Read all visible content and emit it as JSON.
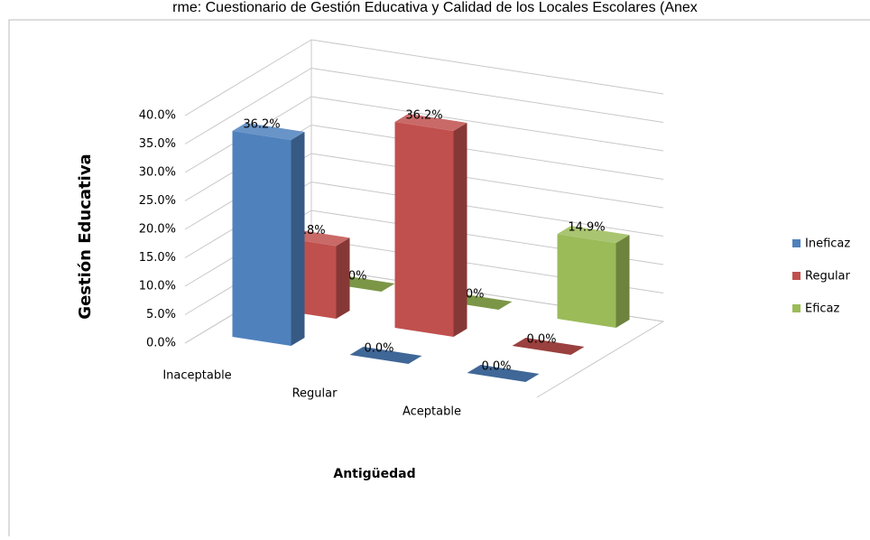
{
  "chart_data": {
    "type": "bar3d",
    "title": "rme: Cuestionario de Gestión Educativa y Calidad de los Locales Escolares (Anex",
    "x_label": "Antigüedad",
    "y_label": "Gestión Educativa",
    "categories": [
      "Inaceptable",
      "Regular",
      "Aceptable"
    ],
    "series": [
      {
        "name": "Ineficaz",
        "color": "#4f81bd",
        "values": [
          36.2,
          0,
          0
        ],
        "value_labels": [
          "36.2%",
          "0.0%",
          "0.0%"
        ]
      },
      {
        "name": "Regular",
        "color": "#c0504d",
        "values": [
          12.8,
          36.2,
          0
        ],
        "value_labels": [
          "12.8%",
          "36.2%",
          "0.0%"
        ]
      },
      {
        "name": "Eficaz",
        "color": "#9bbb59",
        "values": [
          0,
          0,
          14.9
        ],
        "value_labels": [
          "0.0%",
          "0.0%",
          "14.9%"
        ]
      }
    ],
    "ylim": [
      0,
      40
    ],
    "yticks": [
      {
        "value": 0,
        "label": "0.0%"
      },
      {
        "value": 5,
        "label": "5.0%"
      },
      {
        "value": 10,
        "label": "10.0%"
      },
      {
        "value": 15,
        "label": "15.0%"
      },
      {
        "value": 20,
        "label": "20.0%"
      },
      {
        "value": 25,
        "label": "25.0%"
      },
      {
        "value": 30,
        "label": "30.0%"
      },
      {
        "value": 35,
        "label": "35.0%"
      },
      {
        "value": 40,
        "label": "40.0%"
      }
    ],
    "grid": true,
    "legend": "right"
  }
}
